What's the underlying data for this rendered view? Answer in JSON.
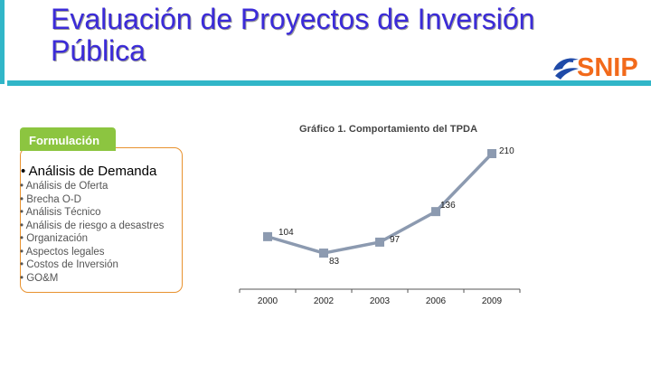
{
  "slide": {
    "title_line1": "Evaluación de Proyectos de Inversión",
    "title_line2": "Pública",
    "logo_text": "SNIP",
    "colors": {
      "accent": "#31b6c8",
      "title": "#3b2bd8",
      "tab": "#8cc540",
      "card_border": "#e8922f",
      "line": "#8c9ab0",
      "logo": "#f26a1b"
    }
  },
  "panel": {
    "tab_label": "Formulación",
    "heading": "• Análisis de Demanda",
    "items": [
      "• Análisis de Oferta",
      "• Brecha O-D",
      "• Análisis Técnico",
      "• Análisis de riesgo a desastres",
      "• Organización",
      "• Aspectos legales",
      "• Costos de Inversión",
      "• GO&M"
    ]
  },
  "chart_data": {
    "type": "line",
    "title": "Gráfico 1. Comportamiento del TPDA",
    "categories": [
      "2000",
      "2002",
      "2003",
      "2006",
      "2009"
    ],
    "series": [
      {
        "values": [
          104,
          83,
          97,
          136,
          210
        ]
      }
    ],
    "x_labels": [
      "2000",
      "2002",
      "2003",
      "2006",
      "2009"
    ],
    "grid": false,
    "y_axis_visible": false
  }
}
